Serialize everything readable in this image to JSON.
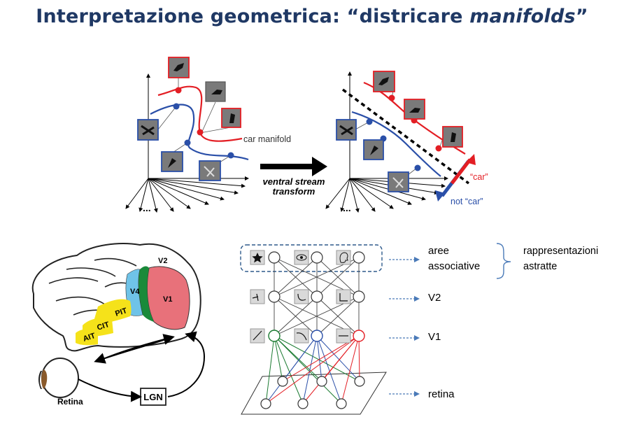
{
  "title": {
    "prefix": "Interpretazione geometrica: “districare ",
    "italic": "manifolds",
    "suffix": "”"
  },
  "manifold_panel": {
    "car_manifold_label": "car manifold",
    "arrow_label_line1": "ventral stream",
    "arrow_label_line2": "transform",
    "car_label": "“car”",
    "not_car_label": "not “car”",
    "ellipsis": "...",
    "colors": {
      "car": "#e31e24",
      "not_car": "#2a4fa8"
    }
  },
  "brain_panel": {
    "areas": [
      "V2",
      "V4",
      "V1",
      "PIT",
      "CIT",
      "AIT"
    ],
    "retina_label": "Retina",
    "lgn_label": "LGN",
    "colors": {
      "v1": "#e8717a",
      "v4": "#6fc3e8",
      "v2": "#1a8a3a",
      "it": "#f5e21a"
    }
  },
  "network_panel": {
    "layers": [
      {
        "label_line1": "aree",
        "label_line2": "associative"
      },
      {
        "label_line1": "V2",
        "label_line2": ""
      },
      {
        "label_line1": "V1",
        "label_line2": ""
      },
      {
        "label_line1": "retina",
        "label_line2": ""
      }
    ],
    "brace_label_line1": "rappresentazioni",
    "brace_label_line2": "astratte"
  }
}
